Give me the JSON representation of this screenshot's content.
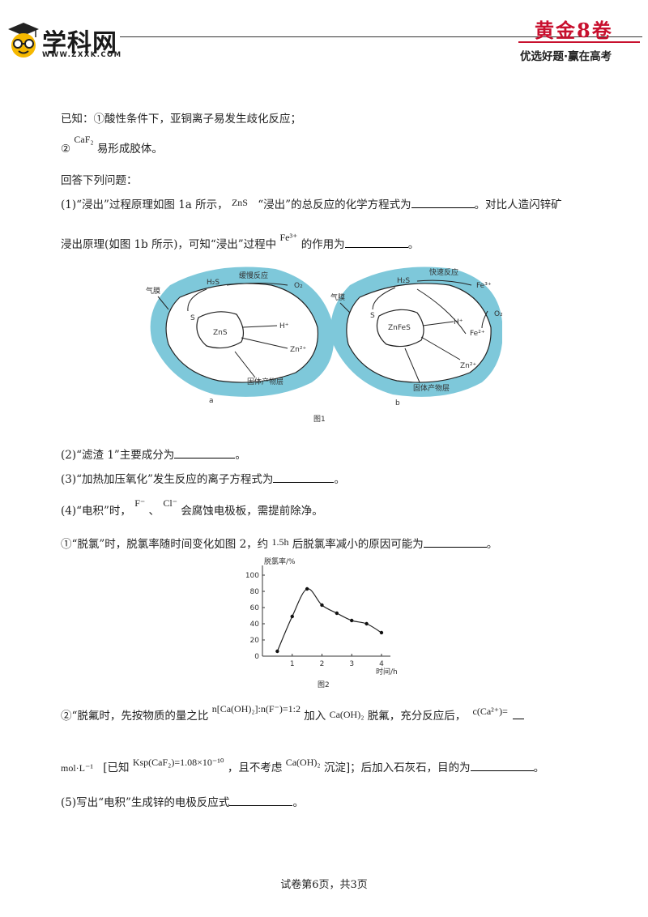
{
  "header": {
    "brand": "学科网",
    "url": "WWW.ZXXK.COM",
    "right_title": "黄金8卷",
    "slogan": "优选好题·赢在高考"
  },
  "intro": {
    "known_1": "已知：①酸性条件下，亚铜离子易发生歧化反应；",
    "known_2_num": "②",
    "known_2_formula": "CaF₂",
    "known_2_text": "易形成胶体。",
    "answer_prompt": "回答下列问题："
  },
  "q1": {
    "part1": "(1)“浸出”过程原理如图 1a 所示，",
    "formula_zns": "ZnS",
    "part2": "“浸出”的总反应的化学方程式为",
    "part3": "。对比人造闪锌矿",
    "line2_a": "浸出原理(如图 1b 所示)，可知“浸出”过程中",
    "formula_fe": "Fe³⁺",
    "line2_b": "的作用为",
    "end": "。"
  },
  "figure1": {
    "caption": "图1",
    "a": {
      "sublabel": "a",
      "membrane": "气膜",
      "slow": "缓慢反应",
      "o2": "O₂",
      "h2s": "H₂S",
      "s": "S",
      "core": "ZnS",
      "h": "H⁺",
      "zn": "Zn²⁺",
      "layer": "固体产物层"
    },
    "b": {
      "sublabel": "b",
      "membrane": "气膜",
      "fast": "快速反应",
      "h2s": "H₂S",
      "fe3": "Fe³⁺",
      "s": "S",
      "core": "ZnFeS",
      "h": "H⁺",
      "o2": "O₂",
      "fe2": "Fe²⁺",
      "zn": "Zn²⁺",
      "layer": "固体产物层"
    }
  },
  "q2": {
    "text": "(2)“滤渣 1”主要成分为",
    "end": "。"
  },
  "q3": {
    "text": "(3)“加热加压氧化”发生反应的离子方程式为",
    "end": "。"
  },
  "q4": {
    "a": "(4)“电积”时，",
    "f": "F⁻",
    "sep": "、",
    "cl": "Cl⁻",
    "b": "会腐蚀电极板，需提前除净。"
  },
  "q4_1": {
    "a": "①“脱氯”时，脱氯率随时间变化如图 2，约",
    "val": "1.5h",
    "b": "后脱氯率减小的原因可能为",
    "end": "。"
  },
  "chart_data": {
    "type": "line",
    "title": "",
    "xlabel": "时间/h",
    "ylabel": "脱氯率/%",
    "caption": "图2",
    "xlim": [
      0,
      4.3
    ],
    "ylim": [
      0,
      100
    ],
    "x_ticks": [
      "1",
      "2",
      "3",
      "4"
    ],
    "y_ticks": [
      "0",
      "20",
      "40",
      "60",
      "80",
      "100"
    ],
    "series": [
      {
        "x": [
          0.5,
          1.0,
          1.5,
          2.0,
          2.5,
          3.0,
          3.5,
          4.0
        ],
        "y": [
          6,
          49,
          83,
          63,
          53,
          44,
          40,
          29
        ]
      }
    ]
  },
  "q4_2": {
    "a": "②“脱氟时，先按物质的量之比",
    "ratio": "n[Ca(OH)₂]:n(F⁻)=1:2",
    "b": "加入",
    "caoh": "Ca(OH)₂",
    "c": "脱氟，充分反应后，",
    "cca": "c(Ca²⁺)=",
    "unit": "mol·L⁻¹",
    "d": "[已知",
    "ksp": "Ksp(CaF₂)=1.08×10⁻¹⁰",
    "e": "，且不考虑",
    "caoh2": "Ca(OH)₂",
    "f": "沉淀]；后加入石灰石，目的为",
    "end": "。"
  },
  "q5": {
    "text": "(5)写出“电积”生成锌的电极反应式",
    "end": "。"
  },
  "footer": {
    "page": "试卷第6页，共3页"
  }
}
